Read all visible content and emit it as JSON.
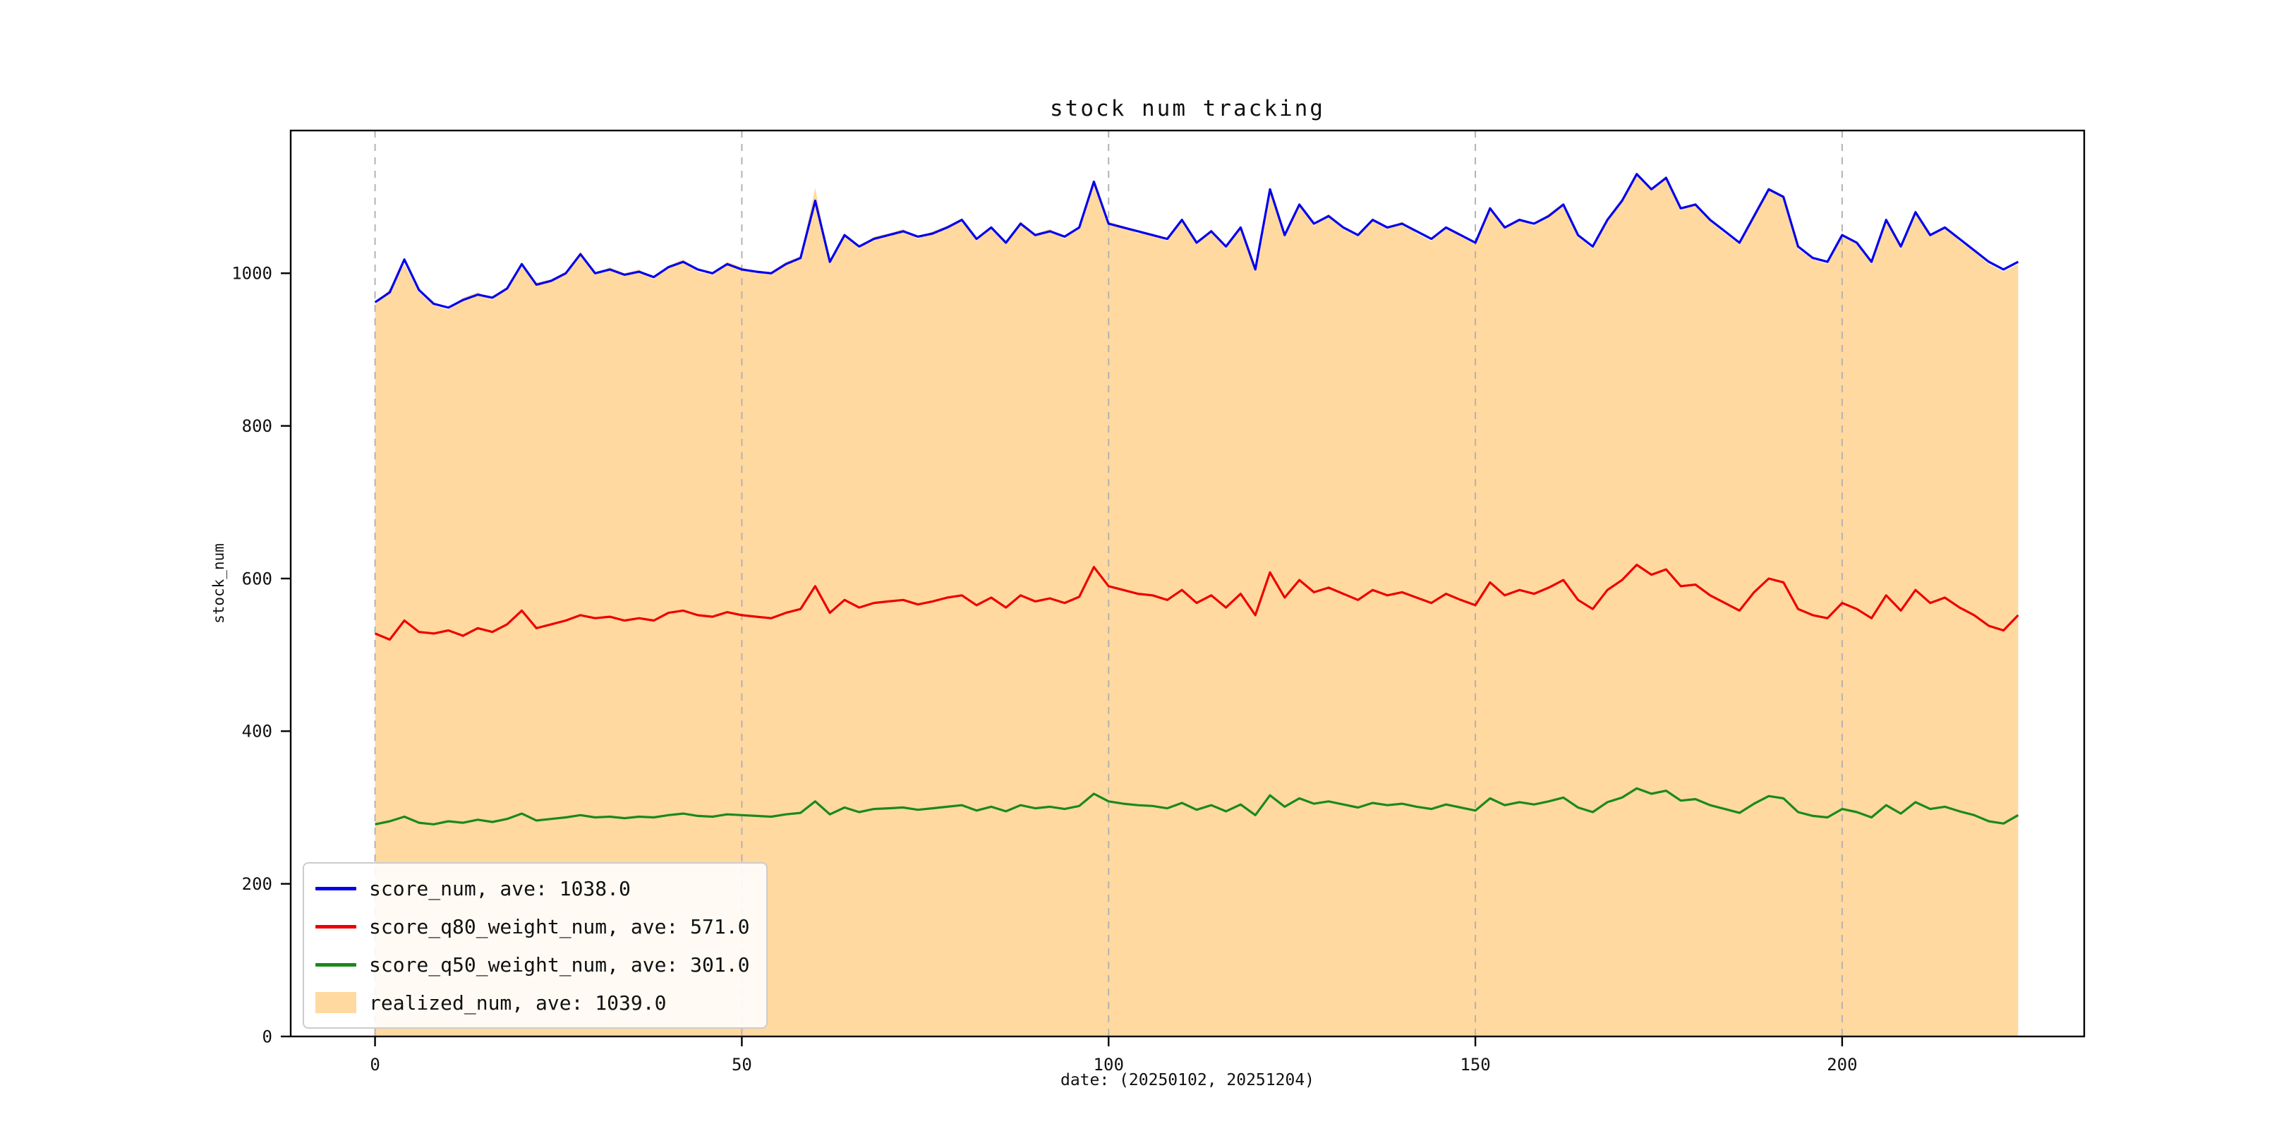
{
  "chart_data": {
    "type": "line",
    "title": "stock num tracking",
    "xlabel": "date: (20250102, 20251204)",
    "ylabel": "stock_num",
    "xlim": [
      -11.5,
      233
    ],
    "ylim": [
      0,
      1187
    ],
    "x_ticks": [
      0,
      50,
      100,
      150,
      200
    ],
    "y_ticks": [
      0,
      200,
      400,
      600,
      800,
      1000
    ],
    "grid": "vertical-dashed",
    "grid_color": "#b3b3b3",
    "legend_position": "lower left",
    "x_start": 0,
    "x_step": 2,
    "series": [
      {
        "name": "score_num",
        "label": "score_num, ave: 1038.0",
        "type": "line",
        "color": "#0000ee",
        "values": [
          962,
          975,
          1018,
          978,
          960,
          955,
          965,
          972,
          968,
          980,
          1012,
          985,
          990,
          1000,
          1025,
          1000,
          1005,
          998,
          1002,
          995,
          1008,
          1015,
          1005,
          1000,
          1012,
          1005,
          1002,
          1000,
          1012,
          1020,
          1095,
          1015,
          1050,
          1035,
          1045,
          1050,
          1055,
          1048,
          1052,
          1060,
          1070,
          1045,
          1060,
          1040,
          1065,
          1050,
          1055,
          1048,
          1060,
          1120,
          1065,
          1060,
          1055,
          1050,
          1045,
          1070,
          1040,
          1055,
          1035,
          1060,
          1005,
          1110,
          1050,
          1090,
          1065,
          1075,
          1060,
          1050,
          1070,
          1060,
          1065,
          1055,
          1045,
          1060,
          1050,
          1040,
          1085,
          1060,
          1070,
          1065,
          1075,
          1090,
          1050,
          1035,
          1070,
          1095,
          1130,
          1110,
          1125,
          1085,
          1090,
          1070,
          1055,
          1040,
          1075,
          1110,
          1100,
          1035,
          1020,
          1015,
          1050,
          1040,
          1015,
          1070,
          1035,
          1080,
          1050,
          1060,
          1045,
          1030,
          1015,
          1005,
          1015
        ]
      },
      {
        "name": "score_q80_weight_num",
        "label": "score_q80_weight_num, ave: 571.0",
        "type": "line",
        "color": "#ee0000",
        "values": [
          528,
          520,
          545,
          530,
          528,
          532,
          525,
          535,
          530,
          540,
          558,
          535,
          540,
          545,
          552,
          548,
          550,
          545,
          548,
          545,
          555,
          558,
          552,
          550,
          556,
          552,
          550,
          548,
          555,
          560,
          590,
          555,
          572,
          562,
          568,
          570,
          572,
          566,
          570,
          575,
          578,
          565,
          575,
          562,
          578,
          570,
          574,
          568,
          576,
          615,
          590,
          585,
          580,
          578,
          572,
          585,
          568,
          578,
          562,
          580,
          552,
          608,
          575,
          598,
          582,
          588,
          580,
          572,
          585,
          578,
          582,
          575,
          568,
          580,
          572,
          565,
          595,
          578,
          585,
          580,
          588,
          598,
          572,
          560,
          585,
          598,
          618,
          605,
          612,
          590,
          592,
          578,
          568,
          558,
          582,
          600,
          595,
          560,
          552,
          548,
          568,
          560,
          548,
          578,
          558,
          585,
          568,
          575,
          562,
          552,
          538,
          532,
          552
        ]
      },
      {
        "name": "score_q50_weight_num",
        "label": "score_q50_weight_num, ave: 301.0",
        "type": "line",
        "color": "#1a8a1a",
        "values": [
          278,
          282,
          288,
          280,
          278,
          282,
          280,
          284,
          281,
          285,
          292,
          283,
          285,
          287,
          290,
          287,
          288,
          286,
          288,
          287,
          290,
          292,
          289,
          288,
          291,
          290,
          289,
          288,
          291,
          293,
          308,
          291,
          300,
          294,
          298,
          299,
          300,
          297,
          299,
          301,
          303,
          296,
          301,
          295,
          303,
          299,
          301,
          298,
          302,
          318,
          308,
          305,
          303,
          302,
          299,
          306,
          297,
          303,
          295,
          304,
          290,
          316,
          301,
          312,
          305,
          308,
          304,
          300,
          306,
          303,
          305,
          301,
          298,
          304,
          300,
          296,
          312,
          303,
          307,
          304,
          308,
          313,
          300,
          294,
          307,
          313,
          325,
          318,
          322,
          309,
          311,
          303,
          298,
          293,
          305,
          315,
          312,
          294,
          289,
          287,
          298,
          294,
          287,
          303,
          292,
          307,
          298,
          301,
          295,
          290,
          282,
          279,
          290
        ]
      },
      {
        "name": "realized_num",
        "label": "realized_num, ave: 1039.0",
        "type": "area",
        "color": "#ffd9a0",
        "fill_color": "#ffd9a0",
        "values": [
          958,
          980,
          1012,
          975,
          958,
          952,
          968,
          975,
          965,
          982,
          1008,
          988,
          992,
          1002,
          1028,
          998,
          1008,
          1000,
          1005,
          992,
          1010,
          1018,
          1002,
          998,
          1015,
          1008,
          1000,
          1002,
          1015,
          1022,
          1112,
          1012,
          1052,
          1032,
          1048,
          1052,
          1058,
          1045,
          1055,
          1062,
          1072,
          1042,
          1062,
          1038,
          1068,
          1052,
          1058,
          1045,
          1062,
          1118,
          1068,
          1062,
          1052,
          1052,
          1042,
          1072,
          1038,
          1058,
          1032,
          1062,
          1002,
          1112,
          1048,
          1092,
          1062,
          1078,
          1058,
          1048,
          1072,
          1058,
          1068,
          1052,
          1042,
          1062,
          1048,
          1038,
          1088,
          1058,
          1072,
          1062,
          1078,
          1092,
          1048,
          1032,
          1072,
          1098,
          1132,
          1108,
          1128,
          1082,
          1092,
          1068,
          1052,
          1038,
          1078,
          1112,
          1102,
          1032,
          1018,
          1012,
          1052,
          1038,
          1012,
          1072,
          1032,
          1082,
          1048,
          1062,
          1042,
          1028,
          1012,
          1002,
          1012
        ]
      }
    ]
  }
}
